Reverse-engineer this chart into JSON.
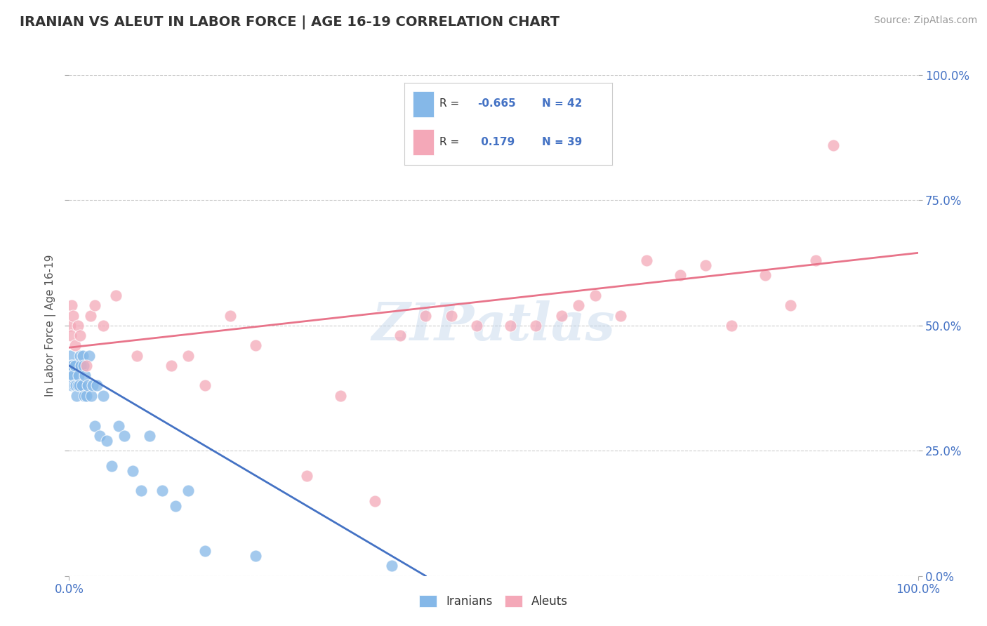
{
  "title": "IRANIAN VS ALEUT IN LABOR FORCE | AGE 16-19 CORRELATION CHART",
  "source": "Source: ZipAtlas.com",
  "ylabel": "In Labor Force | Age 16-19",
  "xlim": [
    0,
    1.0
  ],
  "ylim": [
    0,
    1.0
  ],
  "ytick_positions": [
    0.0,
    0.25,
    0.5,
    0.75,
    1.0
  ],
  "ytick_labels": [
    "0.0%",
    "25.0%",
    "50.0%",
    "75.0%",
    "100.0%"
  ],
  "grid_color": "#cccccc",
  "background_color": "#ffffff",
  "watermark": "ZIPatlas",
  "iranians_color": "#85b8e8",
  "aleuts_color": "#f4a8b8",
  "iranians_line_color": "#4472c4",
  "aleuts_line_color": "#e8748a",
  "iranians_x": [
    0.001,
    0.002,
    0.003,
    0.003,
    0.004,
    0.005,
    0.006,
    0.007,
    0.008,
    0.009,
    0.01,
    0.011,
    0.012,
    0.013,
    0.014,
    0.015,
    0.016,
    0.017,
    0.018,
    0.019,
    0.02,
    0.022,
    0.024,
    0.026,
    0.028,
    0.03,
    0.033,
    0.036,
    0.04,
    0.044,
    0.05,
    0.058,
    0.065,
    0.075,
    0.085,
    0.095,
    0.11,
    0.125,
    0.14,
    0.16,
    0.22,
    0.38
  ],
  "iranians_y": [
    0.44,
    0.42,
    0.4,
    0.38,
    0.42,
    0.4,
    0.38,
    0.42,
    0.38,
    0.36,
    0.38,
    0.4,
    0.38,
    0.44,
    0.42,
    0.38,
    0.44,
    0.42,
    0.36,
    0.4,
    0.36,
    0.38,
    0.44,
    0.36,
    0.38,
    0.3,
    0.38,
    0.28,
    0.36,
    0.27,
    0.22,
    0.3,
    0.28,
    0.21,
    0.17,
    0.28,
    0.17,
    0.14,
    0.17,
    0.05,
    0.04,
    0.02
  ],
  "aleuts_x": [
    0.001,
    0.002,
    0.003,
    0.005,
    0.007,
    0.01,
    0.013,
    0.02,
    0.025,
    0.03,
    0.04,
    0.055,
    0.08,
    0.12,
    0.14,
    0.16,
    0.19,
    0.22,
    0.28,
    0.32,
    0.36,
    0.39,
    0.42,
    0.45,
    0.48,
    0.52,
    0.55,
    0.58,
    0.6,
    0.62,
    0.65,
    0.68,
    0.72,
    0.75,
    0.78,
    0.82,
    0.85,
    0.88,
    0.9
  ],
  "aleuts_y": [
    0.5,
    0.48,
    0.54,
    0.52,
    0.46,
    0.5,
    0.48,
    0.42,
    0.52,
    0.54,
    0.5,
    0.56,
    0.44,
    0.42,
    0.44,
    0.38,
    0.52,
    0.46,
    0.2,
    0.36,
    0.15,
    0.48,
    0.52,
    0.52,
    0.5,
    0.5,
    0.5,
    0.52,
    0.54,
    0.56,
    0.52,
    0.63,
    0.6,
    0.62,
    0.5,
    0.6,
    0.54,
    0.63,
    0.86
  ],
  "iranians_line_x0": 0.0,
  "iranians_line_x1": 0.42,
  "iranians_line_y0": 0.42,
  "iranians_line_y1": 0.0,
  "aleuts_line_x0": 0.0,
  "aleuts_line_x1": 1.0,
  "aleuts_line_y0": 0.456,
  "aleuts_line_y1": 0.645
}
